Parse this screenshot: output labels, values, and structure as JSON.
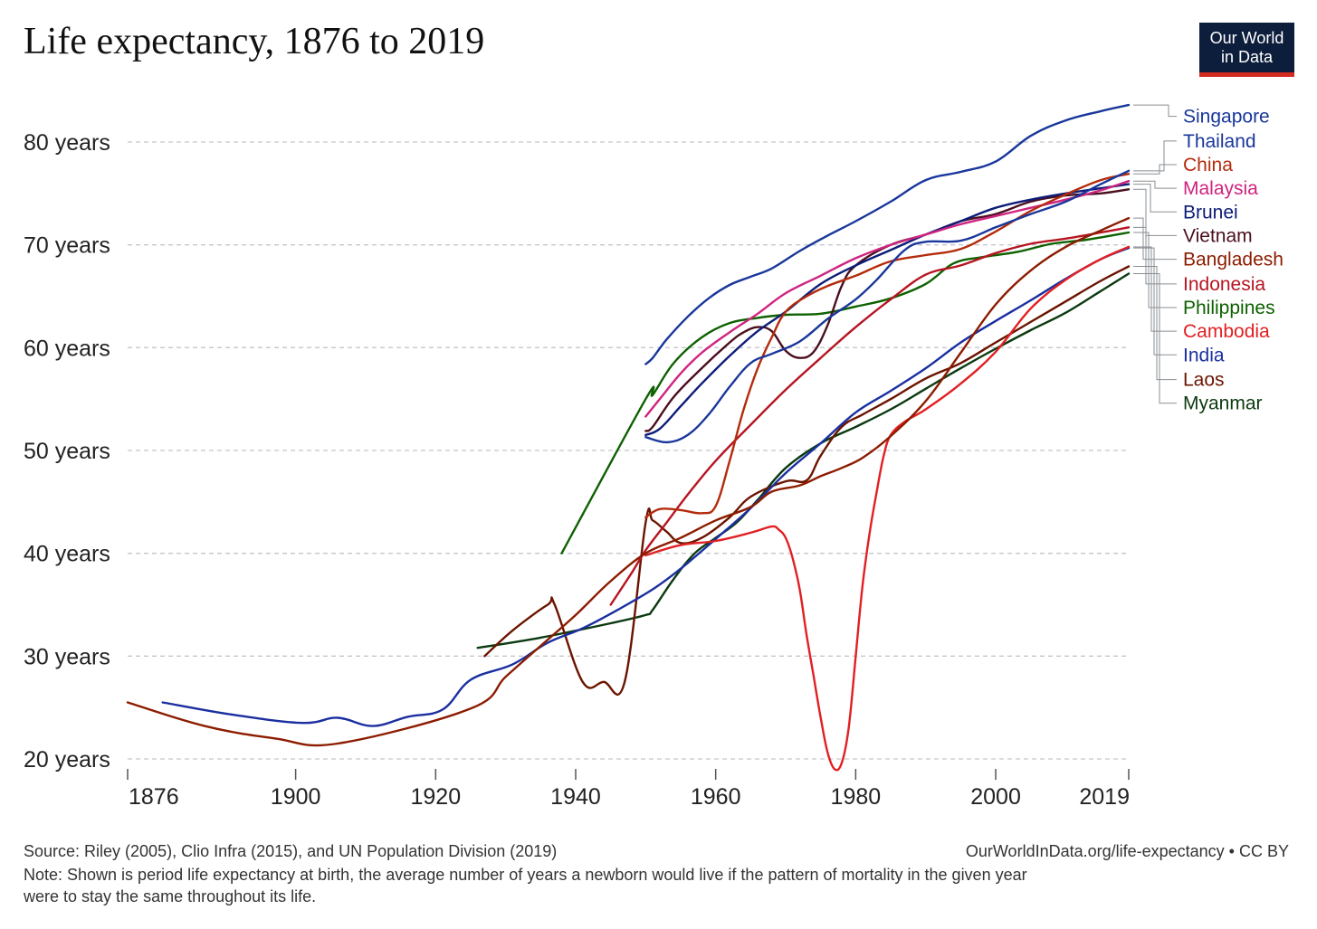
{
  "chart_data": {
    "type": "line",
    "title": "Life expectancy, 1876 to 2019",
    "xlabel": "",
    "ylabel": "",
    "xlim": [
      1876,
      2019
    ],
    "ylim": [
      19,
      84
    ],
    "x_ticks": [
      "1876",
      "1900",
      "1920",
      "1940",
      "1960",
      "1980",
      "2000",
      "2019"
    ],
    "y_ticks": [
      "20 years",
      "30 years",
      "40 years",
      "50 years",
      "60 years",
      "70 years",
      "80 years"
    ],
    "grid": "horizontal dashed",
    "legend_placement": "right (line-end labels)",
    "series": [
      {
        "name": "Singapore",
        "color": "#19379b",
        "label_y": 82.5,
        "points": [
          [
            1950,
            58.4
          ],
          [
            1951,
            59
          ],
          [
            1953,
            60.8
          ],
          [
            1956,
            63
          ],
          [
            1959,
            64.8
          ],
          [
            1962,
            66.1
          ],
          [
            1965,
            66.9
          ],
          [
            1968,
            67.7
          ],
          [
            1972,
            69.4
          ],
          [
            1976,
            70.9
          ],
          [
            1980,
            72.3
          ],
          [
            1985,
            74.2
          ],
          [
            1990,
            76.3
          ],
          [
            1995,
            77.1
          ],
          [
            2000,
            78.1
          ],
          [
            2005,
            80.6
          ],
          [
            2010,
            82.1
          ],
          [
            2015,
            83
          ],
          [
            2019,
            83.6
          ]
        ]
      },
      {
        "name": "Thailand",
        "color": "#19379b",
        "label_y": 80.1,
        "points": [
          [
            1950,
            51.3
          ],
          [
            1953,
            50.8
          ],
          [
            1956,
            51.5
          ],
          [
            1959,
            53.5
          ],
          [
            1962,
            56.2
          ],
          [
            1965,
            58.5
          ],
          [
            1968,
            59.4
          ],
          [
            1972,
            60.6
          ],
          [
            1976,
            62.8
          ],
          [
            1980,
            64.7
          ],
          [
            1983,
            66.6
          ],
          [
            1987,
            69.5
          ],
          [
            1990,
            70.3
          ],
          [
            1995,
            70.4
          ],
          [
            2000,
            71.7
          ],
          [
            2005,
            73
          ],
          [
            2010,
            74.2
          ],
          [
            2015,
            75.9
          ],
          [
            2019,
            77.2
          ]
        ]
      },
      {
        "name": "China",
        "color": "#b42b0c",
        "label_y": 77.8,
        "points": [
          [
            1950,
            43.5
          ],
          [
            1952,
            44.3
          ],
          [
            1955,
            44.2
          ],
          [
            1958,
            43.9
          ],
          [
            1960,
            44.6
          ],
          [
            1962,
            49
          ],
          [
            1964,
            54
          ],
          [
            1966,
            58
          ],
          [
            1968,
            61
          ],
          [
            1970,
            63.5
          ],
          [
            1973,
            65
          ],
          [
            1976,
            66
          ],
          [
            1980,
            67
          ],
          [
            1985,
            68.4
          ],
          [
            1990,
            69
          ],
          [
            1995,
            69.6
          ],
          [
            2000,
            71.3
          ],
          [
            2005,
            73.3
          ],
          [
            2010,
            74.9
          ],
          [
            2015,
            76.3
          ],
          [
            2019,
            76.9
          ]
        ]
      },
      {
        "name": "Malaysia",
        "color": "#d0237f",
        "label_y": 75.5,
        "points": [
          [
            1950,
            53.3
          ],
          [
            1952,
            55
          ],
          [
            1955,
            57.5
          ],
          [
            1958,
            59.5
          ],
          [
            1962,
            61.5
          ],
          [
            1966,
            63.3
          ],
          [
            1970,
            65.3
          ],
          [
            1975,
            67
          ],
          [
            1980,
            68.7
          ],
          [
            1985,
            70
          ],
          [
            1990,
            71
          ],
          [
            1995,
            72
          ],
          [
            2000,
            72.8
          ],
          [
            2005,
            73.6
          ],
          [
            2010,
            74.4
          ],
          [
            2015,
            75.3
          ],
          [
            2019,
            76.2
          ]
        ]
      },
      {
        "name": "Brunei",
        "color": "#0d1d78",
        "label_y": 73.2,
        "points": [
          [
            1950,
            51.5
          ],
          [
            1952,
            52.1
          ],
          [
            1955,
            54.3
          ],
          [
            1958,
            56.5
          ],
          [
            1962,
            59.2
          ],
          [
            1966,
            61.6
          ],
          [
            1970,
            63.5
          ],
          [
            1975,
            66.2
          ],
          [
            1980,
            68
          ],
          [
            1985,
            69.5
          ],
          [
            1990,
            71
          ],
          [
            1995,
            72.3
          ],
          [
            2000,
            73.6
          ],
          [
            2005,
            74.4
          ],
          [
            2010,
            75
          ],
          [
            2015,
            75.5
          ],
          [
            2019,
            75.9
          ]
        ]
      },
      {
        "name": "Vietnam",
        "color": "#4a0f1f",
        "label_y": 70.9,
        "points": [
          [
            1950,
            51.9
          ],
          [
            1951,
            52.3
          ],
          [
            1954,
            55.2
          ],
          [
            1958,
            58
          ],
          [
            1962,
            60.5
          ],
          [
            1964,
            61.5
          ],
          [
            1966,
            62
          ],
          [
            1968,
            61.6
          ],
          [
            1970,
            59.7
          ],
          [
            1972,
            59
          ],
          [
            1974,
            59.6
          ],
          [
            1976,
            62.2
          ],
          [
            1978,
            66
          ],
          [
            1980,
            68
          ],
          [
            1985,
            70
          ],
          [
            1990,
            71
          ],
          [
            1995,
            72.3
          ],
          [
            2000,
            73
          ],
          [
            2005,
            74.2
          ],
          [
            2010,
            74.8
          ],
          [
            2015,
            75
          ],
          [
            2019,
            75.4
          ]
        ]
      },
      {
        "name": "Bangladesh",
        "color": "#8c1c00",
        "label_y": 68.6,
        "points": [
          [
            1876,
            25.5
          ],
          [
            1887,
            23.2
          ],
          [
            1897,
            22
          ],
          [
            1906,
            21.5
          ],
          [
            1925,
            24.9
          ],
          [
            1930,
            28
          ],
          [
            1935,
            31
          ],
          [
            1940,
            34
          ],
          [
            1945,
            37.3
          ],
          [
            1950,
            40
          ],
          [
            1955,
            41.5
          ],
          [
            1960,
            43.2
          ],
          [
            1965,
            44.5
          ],
          [
            1968,
            46
          ],
          [
            1972,
            46.6
          ],
          [
            1975,
            47.5
          ],
          [
            1978,
            48.3
          ],
          [
            1981,
            49.3
          ],
          [
            1985,
            51.4
          ],
          [
            1990,
            54.8
          ],
          [
            1995,
            59.5
          ],
          [
            2000,
            64.2
          ],
          [
            2005,
            67.5
          ],
          [
            2010,
            69.8
          ],
          [
            2015,
            71.4
          ],
          [
            2019,
            72.6
          ]
        ]
      },
      {
        "name": "Indonesia",
        "color": "#b61521",
        "label_y": 66.2,
        "points": [
          [
            1945,
            35
          ],
          [
            1948,
            38.1
          ],
          [
            1950,
            40.3
          ],
          [
            1953,
            43
          ],
          [
            1956,
            45.7
          ],
          [
            1960,
            49
          ],
          [
            1965,
            52.5
          ],
          [
            1970,
            55.9
          ],
          [
            1975,
            59
          ],
          [
            1980,
            62
          ],
          [
            1985,
            64.7
          ],
          [
            1990,
            67.1
          ],
          [
            1995,
            68
          ],
          [
            2000,
            69.2
          ],
          [
            2005,
            70.1
          ],
          [
            2010,
            70.6
          ],
          [
            2015,
            71.2
          ],
          [
            2019,
            71.7
          ]
        ]
      },
      {
        "name": "Philippines",
        "color": "#0d6100",
        "label_y": 63.9,
        "points": [
          [
            1938,
            40
          ],
          [
            1950,
            55
          ],
          [
            1951,
            55.4
          ],
          [
            1954,
            58.5
          ],
          [
            1958,
            61
          ],
          [
            1962,
            62.4
          ],
          [
            1966,
            62.9
          ],
          [
            1970,
            63.2
          ],
          [
            1975,
            63.3
          ],
          [
            1980,
            64
          ],
          [
            1985,
            64.8
          ],
          [
            1990,
            66.2
          ],
          [
            1994,
            68.2
          ],
          [
            1998,
            68.8
          ],
          [
            2003,
            69.3
          ],
          [
            2008,
            70.1
          ],
          [
            2013,
            70.5
          ],
          [
            2019,
            71.2
          ]
        ]
      },
      {
        "name": "Cambodia",
        "color": "#e12023",
        "label_y": 61.6,
        "points": [
          [
            1950,
            39.8
          ],
          [
            1955,
            40.8
          ],
          [
            1960,
            41.2
          ],
          [
            1965,
            42
          ],
          [
            1968,
            42.6
          ],
          [
            1969,
            42.3
          ],
          [
            1970,
            41.5
          ],
          [
            1971,
            39.5
          ],
          [
            1972,
            36.5
          ],
          [
            1973,
            32
          ],
          [
            1974,
            28
          ],
          [
            1975,
            24
          ],
          [
            1976,
            20.6
          ],
          [
            1977,
            19
          ],
          [
            1978,
            19.6
          ],
          [
            1979,
            23
          ],
          [
            1980,
            30
          ],
          [
            1981,
            37
          ],
          [
            1982,
            42
          ],
          [
            1983,
            46
          ],
          [
            1984,
            49.5
          ],
          [
            1985,
            51.5
          ],
          [
            1987,
            52.8
          ],
          [
            1990,
            54
          ],
          [
            1995,
            56.5
          ],
          [
            2000,
            59.6
          ],
          [
            2005,
            63.8
          ],
          [
            2010,
            66.6
          ],
          [
            2015,
            68.6
          ],
          [
            2019,
            69.8
          ]
        ]
      },
      {
        "name": "India",
        "color": "#1a2fa0",
        "label_y": 59.3,
        "points": [
          [
            1881,
            25.5
          ],
          [
            1891,
            24.3
          ],
          [
            1901,
            23.5
          ],
          [
            1906,
            24
          ],
          [
            1911,
            23.2
          ],
          [
            1916,
            24.1
          ],
          [
            1921,
            24.8
          ],
          [
            1925,
            27.7
          ],
          [
            1931,
            29.2
          ],
          [
            1936,
            31.3
          ],
          [
            1941,
            32.7
          ],
          [
            1946,
            34.5
          ],
          [
            1951,
            36.5
          ],
          [
            1955,
            38.5
          ],
          [
            1960,
            41.4
          ],
          [
            1965,
            44.4
          ],
          [
            1970,
            47.8
          ],
          [
            1975,
            50.7
          ],
          [
            1980,
            53.7
          ],
          [
            1985,
            55.8
          ],
          [
            1990,
            58
          ],
          [
            1995,
            60.5
          ],
          [
            2000,
            62.6
          ],
          [
            2005,
            64.6
          ],
          [
            2010,
            66.7
          ],
          [
            2015,
            68.6
          ],
          [
            2019,
            69.7
          ]
        ]
      },
      {
        "name": "Laos",
        "color": "#6b1400",
        "label_y": 56.9,
        "points": [
          [
            1927,
            30
          ],
          [
            1931,
            32.5
          ],
          [
            1936,
            35
          ],
          [
            1937,
            35
          ],
          [
            1941,
            27.5
          ],
          [
            1944,
            27.5
          ],
          [
            1947,
            27.5
          ],
          [
            1950,
            43
          ],
          [
            1951,
            43.2
          ],
          [
            1953,
            42.1
          ],
          [
            1955,
            41
          ],
          [
            1958,
            41.5
          ],
          [
            1962,
            43.5
          ],
          [
            1965,
            45.5
          ],
          [
            1970,
            47
          ],
          [
            1973,
            47.1
          ],
          [
            1975,
            49.5
          ],
          [
            1978,
            52.3
          ],
          [
            1981,
            53.5
          ],
          [
            1985,
            55
          ],
          [
            1990,
            57
          ],
          [
            1995,
            58.5
          ],
          [
            2000,
            60.5
          ],
          [
            2005,
            62.5
          ],
          [
            2010,
            64.5
          ],
          [
            2015,
            66.5
          ],
          [
            2019,
            67.9
          ]
        ]
      },
      {
        "name": "Myanmar",
        "color": "#0b3a10",
        "label_y": 54.6,
        "points": [
          [
            1926,
            30.8
          ],
          [
            1935,
            31.8
          ],
          [
            1945,
            33.2
          ],
          [
            1950,
            34
          ],
          [
            1951,
            34.5
          ],
          [
            1954,
            37.5
          ],
          [
            1957,
            40
          ],
          [
            1960,
            41.5
          ],
          [
            1963,
            43
          ],
          [
            1966,
            45.2
          ],
          [
            1970,
            48.3
          ],
          [
            1975,
            50.7
          ],
          [
            1980,
            52.3
          ],
          [
            1985,
            54
          ],
          [
            1990,
            56
          ],
          [
            1995,
            58
          ],
          [
            2000,
            59.9
          ],
          [
            2005,
            61.7
          ],
          [
            2010,
            63.4
          ],
          [
            2015,
            65.5
          ],
          [
            2019,
            67.2
          ]
        ]
      }
    ]
  },
  "logo": {
    "line1": "Our World",
    "line2": "in Data"
  },
  "footer": {
    "source": "Source: Riley (2005), Clio Infra (2015), and UN Population Division (2019)",
    "credit": "OurWorldInData.org/life-expectancy • CC BY",
    "note_line1": "Note: Shown is period life expectancy at birth, the average number of years a newborn would live if the pattern of mortality in the given year",
    "note_line2": "were to stay the same throughout its life."
  }
}
